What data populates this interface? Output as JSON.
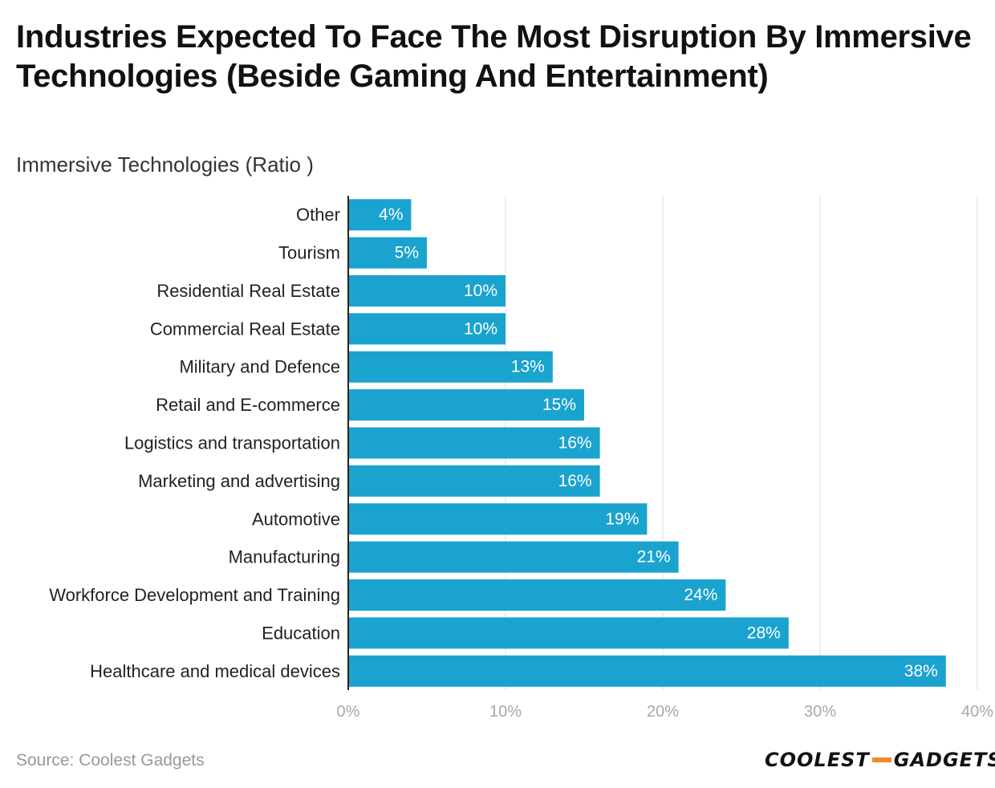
{
  "chart_data": {
    "type": "bar",
    "orientation": "horizontal",
    "title": "Industries Expected To Face The Most Disruption By Immersive Technologies (Beside Gaming And Entertainment)",
    "subtitle": "Immersive Technologies (Ratio )",
    "categories": [
      "Other",
      "Tourism",
      "Residential Real Estate",
      "Commercial Real Estate",
      "Military and Defence",
      "Retail and E-commerce",
      "Logistics and transportation",
      "Marketing and advertising",
      "Automotive",
      "Manufacturing",
      "Workforce Development and Training",
      "Education",
      "Healthcare and medical devices"
    ],
    "values": [
      4,
      5,
      10,
      10,
      13,
      15,
      16,
      16,
      19,
      21,
      24,
      28,
      38
    ],
    "value_suffix": "%",
    "xlim": [
      0,
      40
    ],
    "xticks": [
      0,
      10,
      20,
      30,
      40
    ],
    "xtick_labels": [
      "0%",
      "10%",
      "20%",
      "30%",
      "40%"
    ],
    "grid": true,
    "bar_color": "#1aa3cf"
  },
  "footer": {
    "source": "Source: Coolest Gadgets",
    "logo_left": "COOLEST",
    "logo_right": "GADGETS"
  }
}
